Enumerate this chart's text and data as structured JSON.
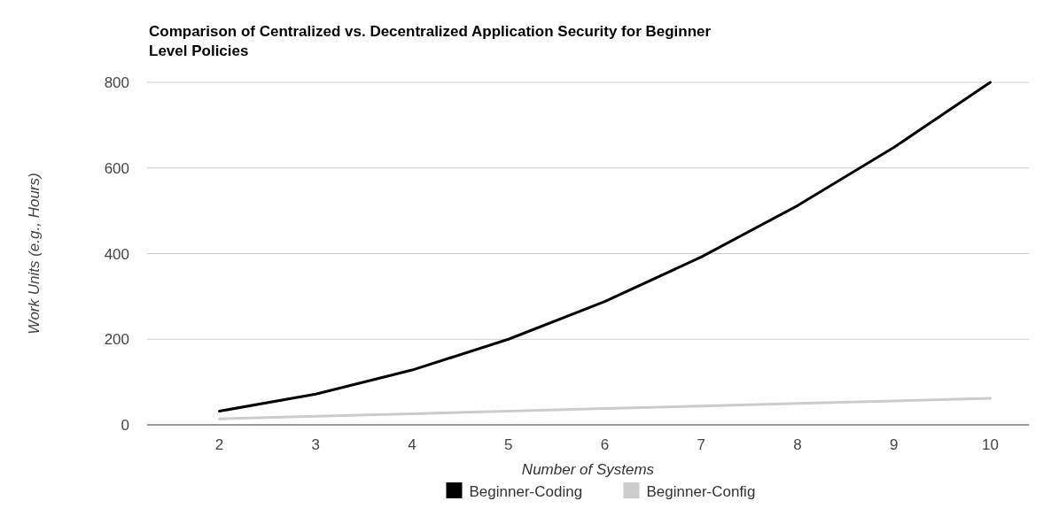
{
  "chart_data": {
    "type": "line",
    "title": "Comparison of Centralized vs. Decentralized Application Security for Beginner Level Policies",
    "xlabel": "Number of Systems",
    "ylabel": "Work Units (e.g., Hours)",
    "x": [
      2,
      3,
      4,
      5,
      6,
      7,
      8,
      9,
      10
    ],
    "xlim": [
      1.25,
      10.4
    ],
    "xticks": [
      2,
      3,
      4,
      5,
      6,
      7,
      8,
      9,
      10
    ],
    "ylim": [
      0,
      800
    ],
    "yticks": [
      0,
      200,
      400,
      600,
      800
    ],
    "grid": "y",
    "legend": "bottom",
    "marker": "none",
    "line_style": "solid",
    "series": [
      {
        "name": "Beginner-Coding",
        "color": "#000000",
        "values": [
          32,
          72,
          128,
          200,
          288,
          392,
          512,
          648,
          800
        ]
      },
      {
        "name": "Beginner-Config",
        "color": "#cccccc",
        "values": [
          14,
          20,
          26,
          32,
          38,
          44,
          50,
          56,
          62
        ]
      }
    ]
  }
}
